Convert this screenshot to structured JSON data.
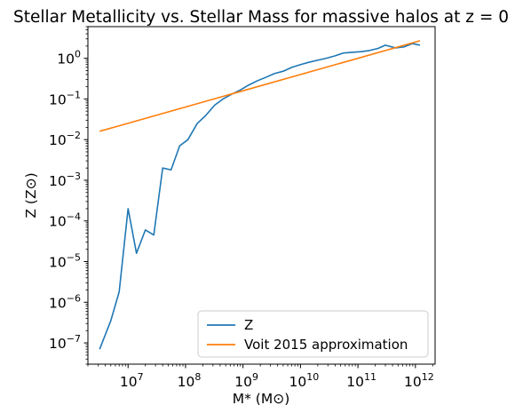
{
  "chart_data": {
    "type": "line",
    "title": "Stellar Metallicity vs. Stellar Mass for massive halos at z = 0",
    "xlabel": "M* (M⊙)",
    "ylabel": "Z (Z⊙)",
    "xscale": "log",
    "yscale": "log",
    "xlim": [
      2000000.0,
      2200000000000.0
    ],
    "ylim": [
      3e-08,
      6.0
    ],
    "legend_placement": "lower-right",
    "grid": false,
    "xticks": [
      {
        "value": 10000000.0,
        "base": "10",
        "exp": "7"
      },
      {
        "value": 100000000.0,
        "base": "10",
        "exp": "8"
      },
      {
        "value": 1000000000.0,
        "base": "10",
        "exp": "9"
      },
      {
        "value": 10000000000.0,
        "base": "10",
        "exp": "10"
      },
      {
        "value": 100000000000.0,
        "base": "10",
        "exp": "11"
      },
      {
        "value": 1000000000000.0,
        "base": "10",
        "exp": "12"
      }
    ],
    "yticks": [
      {
        "value": 1e-07,
        "base": "10",
        "exp": "−7"
      },
      {
        "value": 1e-06,
        "base": "10",
        "exp": "−6"
      },
      {
        "value": 1e-05,
        "base": "10",
        "exp": "−5"
      },
      {
        "value": 0.0001,
        "base": "10",
        "exp": "−4"
      },
      {
        "value": 0.001,
        "base": "10",
        "exp": "−3"
      },
      {
        "value": 0.01,
        "base": "10",
        "exp": "−2"
      },
      {
        "value": 0.1,
        "base": "10",
        "exp": "−1"
      },
      {
        "value": 1.0,
        "base": "10",
        "exp": "0"
      }
    ],
    "series": [
      {
        "name": "Z",
        "color": "#1f77b4",
        "x": [
          3200000.0,
          5000000.0,
          7000000.0,
          10000000.0,
          14000000.0,
          20000000.0,
          28000000.0,
          40000000.0,
          56000000.0,
          79000000.0,
          110000000.0,
          160000000.0,
          220000000.0,
          320000000.0,
          450000000.0,
          630000000.0,
          890000000.0,
          1260000000.0,
          1780000000.0,
          2500000000.0,
          3500000000.0,
          5000000000.0,
          7100000000.0,
          10000000000.0,
          14100000000.0,
          20000000000.0,
          28000000000.0,
          40000000000.0,
          56000000000.0,
          79000000000.0,
          112000000000.0,
          158000000000.0,
          224000000000.0,
          300000000000.0,
          450000000000.0,
          630000000000.0,
          890000000000.0,
          1200000000000.0
        ],
        "values": [
          7e-08,
          3.5e-07,
          1.8e-06,
          0.0002,
          1.6e-05,
          6e-05,
          4.5e-05,
          0.002,
          0.0018,
          0.007,
          0.01,
          0.025,
          0.038,
          0.07,
          0.1,
          0.13,
          0.165,
          0.22,
          0.28,
          0.34,
          0.42,
          0.48,
          0.6,
          0.7,
          0.8,
          0.9,
          1.0,
          1.15,
          1.35,
          1.4,
          1.45,
          1.55,
          1.75,
          2.1,
          1.8,
          1.9,
          2.3,
          2.1
        ]
      },
      {
        "name": "Voit 2015 approximation",
        "color": "#ff7f0e",
        "x": [
          3200000.0,
          1200000000000.0
        ],
        "values": [
          0.016,
          2.7
        ]
      }
    ]
  }
}
